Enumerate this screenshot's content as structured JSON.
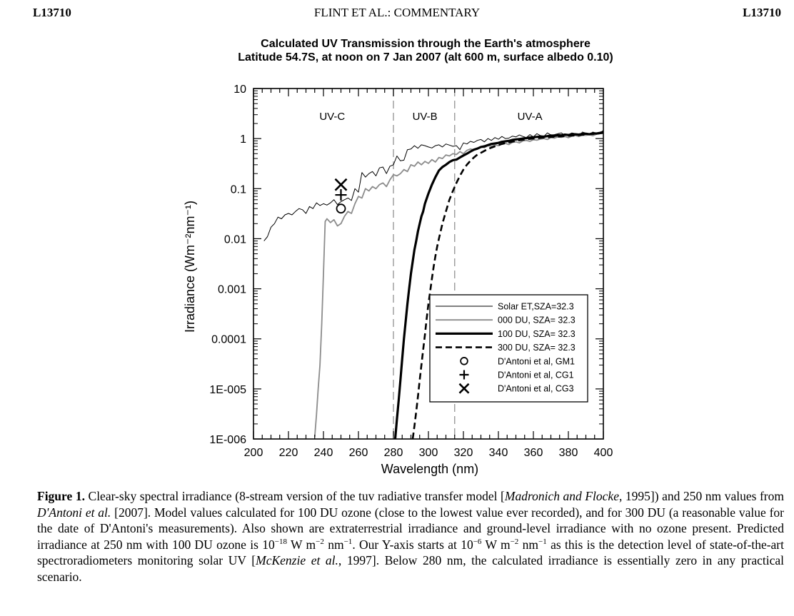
{
  "header": {
    "left": "L13710",
    "center": "FLINT ET AL.: COMMENTARY",
    "right": "L13710"
  },
  "chart_data": {
    "type": "line",
    "title": "Calculated UV Transmission through the Earth's atmosphere",
    "subtitle": "Latitude 54.7S, at noon on 7 Jan 2007 (alt 600 m, surface albedo 0.10)",
    "xlabel": "Wavelength (nm)",
    "ylabel": "Irradiance (Wm⁻²nm⁻¹)",
    "xlim": [
      200,
      400
    ],
    "ylim": [
      1e-06,
      10
    ],
    "yscale": "log",
    "xticks": [
      "200",
      "220",
      "240",
      "260",
      "280",
      "300",
      "320",
      "340",
      "360",
      "380",
      "400"
    ],
    "yticks": [
      {
        "value": 10,
        "label": "10"
      },
      {
        "value": 1,
        "label": "1"
      },
      {
        "value": 0.1,
        "label": "0.1"
      },
      {
        "value": 0.01,
        "label": "0.01"
      },
      {
        "value": 0.001,
        "label": "0.001"
      },
      {
        "value": 0.0001,
        "label": "0.0001"
      },
      {
        "value": 1e-05,
        "label": "1E-005"
      },
      {
        "value": 1e-06,
        "label": "1E-006"
      }
    ],
    "regions": [
      {
        "label": "UV-C",
        "x": 245
      },
      {
        "label": "UV-B",
        "x": 298
      },
      {
        "label": "UV-A",
        "x": 358
      }
    ],
    "boundaries": [
      280,
      315
    ],
    "legend_position": "bottom-right",
    "series": [
      {
        "name": "Solar ET,SZA=32.3",
        "style": "thin-black",
        "x": [
          206,
          208,
          210,
          212,
          214,
          216,
          218,
          220,
          222,
          224,
          226,
          228,
          230,
          232,
          234,
          236,
          238,
          240,
          242,
          244,
          246,
          248,
          250,
          252,
          254,
          256,
          258,
          260,
          262,
          264,
          266,
          268,
          270,
          272,
          274,
          276,
          278,
          280,
          282,
          284,
          286,
          288,
          290,
          292,
          294,
          296,
          298,
          300,
          302,
          304,
          306,
          308,
          310,
          312,
          314,
          316,
          318,
          320,
          322,
          324,
          326,
          328,
          330,
          332,
          334,
          336,
          338,
          340,
          342,
          344,
          346,
          348,
          350,
          352,
          354,
          356,
          358,
          360,
          362,
          364,
          366,
          368,
          370,
          372,
          374,
          376,
          378,
          380,
          382,
          384,
          386,
          388,
          390,
          392,
          394,
          396,
          398,
          400
        ],
        "y": [
          0.009,
          0.011,
          0.017,
          0.02,
          0.027,
          0.025,
          0.03,
          0.032,
          0.03,
          0.035,
          0.04,
          0.038,
          0.032,
          0.044,
          0.04,
          0.052,
          0.046,
          0.05,
          0.047,
          0.052,
          0.06,
          0.048,
          0.055,
          0.06,
          0.065,
          0.058,
          0.1,
          0.085,
          0.21,
          0.17,
          0.2,
          0.22,
          0.18,
          0.26,
          0.27,
          0.2,
          0.28,
          0.3,
          0.45,
          0.36,
          0.37,
          0.6,
          0.62,
          0.72,
          0.64,
          0.75,
          0.72,
          0.68,
          0.65,
          0.72,
          0.75,
          0.68,
          0.78,
          0.74,
          0.7,
          0.72,
          0.6,
          0.82,
          0.78,
          0.88,
          0.84,
          0.92,
          0.96,
          0.86,
          1.0,
          0.92,
          1.05,
          0.97,
          1.1,
          1.0,
          1.02,
          1.12,
          1.08,
          1.18,
          1.1,
          1.05,
          1.2,
          1.08,
          1.25,
          1.15,
          1.1,
          1.3,
          1.18,
          1.2,
          1.25,
          1.3,
          1.15,
          1.2,
          1.3,
          1.25,
          1.1,
          1.35,
          1.28,
          1.2,
          1.35,
          1.25,
          1.3,
          1.45
        ]
      },
      {
        "name": "000 DU, SZA= 32.3",
        "style": "thin-gray",
        "x": [
          235,
          236,
          237,
          238,
          239,
          240,
          241,
          242,
          244,
          246,
          248,
          250,
          252,
          254,
          256,
          258,
          260,
          262,
          264,
          266,
          268,
          270,
          272,
          274,
          276,
          278,
          280,
          282,
          284,
          286,
          288,
          290,
          292,
          294,
          296,
          298,
          300,
          302,
          304,
          306,
          308,
          310,
          312,
          314,
          316,
          318,
          320,
          322,
          324,
          326,
          328,
          330,
          332,
          334,
          336,
          338,
          340,
          342,
          344,
          346,
          348,
          350,
          352,
          354,
          356,
          358,
          360,
          362,
          364,
          366,
          368,
          370,
          372,
          374,
          376,
          378,
          380,
          382,
          384,
          386,
          388,
          390,
          392,
          394,
          396,
          398,
          400
        ],
        "y": [
          1.1e-06,
          3e-06,
          1e-05,
          3e-05,
          0.0002,
          0.002,
          0.022,
          0.025,
          0.021,
          0.024,
          0.018,
          0.02,
          0.028,
          0.035,
          0.032,
          0.05,
          0.07,
          0.065,
          0.1,
          0.09,
          0.11,
          0.1,
          0.12,
          0.13,
          0.11,
          0.15,
          0.19,
          0.18,
          0.2,
          0.24,
          0.22,
          0.3,
          0.28,
          0.34,
          0.3,
          0.35,
          0.32,
          0.38,
          0.34,
          0.42,
          0.4,
          0.47,
          0.45,
          0.5,
          0.48,
          0.55,
          0.5,
          0.58,
          0.62,
          0.6,
          0.65,
          0.68,
          0.66,
          0.72,
          0.7,
          0.75,
          0.72,
          0.78,
          0.8,
          0.76,
          0.84,
          0.86,
          0.82,
          0.9,
          0.92,
          0.88,
          0.95,
          0.93,
          0.98,
          1.0,
          0.96,
          1.05,
          1.02,
          1.08,
          1.06,
          1.1,
          1.04,
          1.12,
          1.15,
          1.1,
          1.18,
          1.16,
          1.2,
          1.14,
          1.22,
          1.25,
          1.3
        ]
      },
      {
        "name": "100 DU, SZA= 32.3",
        "style": "thick-black",
        "x": [
          281,
          282,
          283,
          284,
          285,
          286,
          287,
          288,
          289,
          290,
          291,
          292,
          293,
          294,
          295,
          296,
          297,
          298,
          300,
          302,
          304,
          306,
          308,
          310,
          312,
          314,
          316,
          318,
          320,
          322,
          324,
          326,
          328,
          330,
          332,
          334,
          336,
          338,
          340,
          342,
          344,
          346,
          348,
          350,
          352,
          354,
          356,
          358,
          360,
          362,
          364,
          366,
          368,
          370,
          372,
          374,
          376,
          378,
          380,
          382,
          384,
          386,
          388,
          390,
          392,
          394,
          396,
          398,
          400
        ],
        "y": [
          1e-06,
          2.5e-06,
          6e-06,
          1.5e-05,
          4e-05,
          0.0001,
          0.00022,
          0.0005,
          0.001,
          0.002,
          0.0035,
          0.006,
          0.009,
          0.014,
          0.02,
          0.028,
          0.035,
          0.05,
          0.08,
          0.12,
          0.17,
          0.23,
          0.27,
          0.3,
          0.34,
          0.37,
          0.38,
          0.42,
          0.46,
          0.5,
          0.55,
          0.6,
          0.63,
          0.68,
          0.7,
          0.74,
          0.78,
          0.8,
          0.82,
          0.86,
          0.88,
          0.9,
          0.94,
          0.96,
          0.98,
          1.0,
          1.02,
          1.05,
          1.06,
          1.08,
          1.1,
          1.09,
          1.12,
          1.15,
          1.13,
          1.17,
          1.16,
          1.2,
          1.18,
          1.2,
          1.22,
          1.2,
          1.24,
          1.25,
          1.22,
          1.28,
          1.26,
          1.3,
          1.35
        ]
      },
      {
        "name": "300 DU, SZA= 32.3",
        "style": "dashed-black",
        "x": [
          291,
          292,
          293,
          294,
          295,
          296,
          297,
          298,
          299,
          300,
          301,
          302,
          303,
          304,
          305,
          306,
          308,
          310,
          312,
          314,
          316,
          318,
          320,
          322,
          324,
          326,
          328,
          330,
          334,
          338,
          342,
          346,
          350,
          355,
          360,
          365,
          370,
          375,
          380,
          385,
          390,
          395,
          400
        ],
        "y": [
          1e-06,
          1.8e-06,
          3.5e-06,
          7e-06,
          1.5e-05,
          3e-05,
          6e-05,
          0.00012,
          0.00025,
          0.0005,
          0.0009,
          0.0016,
          0.0028,
          0.0045,
          0.007,
          0.01,
          0.02,
          0.035,
          0.06,
          0.09,
          0.13,
          0.18,
          0.24,
          0.3,
          0.36,
          0.42,
          0.48,
          0.52,
          0.62,
          0.7,
          0.78,
          0.84,
          0.9,
          0.96,
          1.0,
          1.04,
          1.08,
          1.1,
          1.14,
          1.16,
          1.2,
          1.24,
          1.3
        ]
      }
    ],
    "points": [
      {
        "name": "D'Antoni et al, GM1",
        "marker": "circle",
        "x": 250,
        "y": 0.04
      },
      {
        "name": "D'Antoni et al, CG1",
        "marker": "plus",
        "x": 250,
        "y": 0.075
      },
      {
        "name": "D'Antoni et al, CG3",
        "marker": "x",
        "x": 250,
        "y": 0.12
      }
    ]
  },
  "caption": {
    "label": "Figure 1.",
    "parts": [
      {
        "t": "  Clear-sky spectral irradiance (8-stream version of the tuv radiative transfer model ["
      },
      {
        "t": "Madronich and Flocke",
        "i": true
      },
      {
        "t": ", 1995]) and 250 nm values from "
      },
      {
        "t": "D'Antoni et al.",
        "i": true
      },
      {
        "t": " [2007]. Model values calculated for 100 DU ozone (close to the lowest value ever recorded), and for 300 DU (a reasonable value for the date of D'Antoni's measurements). Also shown are extraterrestrial irradiance and ground-level irradiance with no ozone present. Predicted irradiance at 250 nm with 100 DU ozone is 10"
      },
      {
        "t": "−18",
        "sup": true
      },
      {
        "t": " W m"
      },
      {
        "t": "−2",
        "sup": true
      },
      {
        "t": " nm"
      },
      {
        "t": "−1",
        "sup": true
      },
      {
        "t": ". Our Y-axis starts at 10"
      },
      {
        "t": "−6",
        "sup": true
      },
      {
        "t": " W m"
      },
      {
        "t": "−2",
        "sup": true
      },
      {
        "t": " nm"
      },
      {
        "t": "−1",
        "sup": true
      },
      {
        "t": " as this is the detection level of state-of-the-art spectroradiometers monitoring solar UV ["
      },
      {
        "t": "McKenzie et al.",
        "i": true
      },
      {
        "t": ", 1997]. Below 280 nm, the calculated irradiance is essentially zero in any practical scenario."
      }
    ]
  }
}
